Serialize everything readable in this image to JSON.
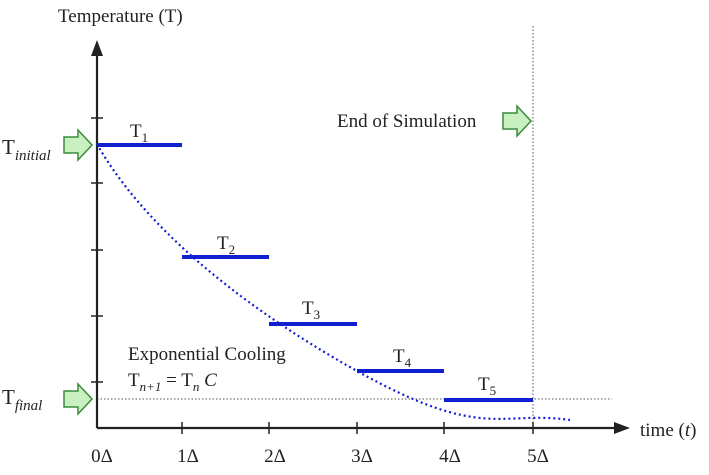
{
  "y_axis_label": "Temperature (T)",
  "x_axis_label_text": "time (",
  "x_axis_label_var": "t",
  "x_axis_label_close": ")",
  "t_initial": {
    "base": "T",
    "sub": "initial"
  },
  "t_final": {
    "base": "T",
    "sub": "final"
  },
  "end_label": "End of Simulation",
  "formula": {
    "title": "Exponential Cooling",
    "lhs_base": "T",
    "lhs_sub": "n+1",
    "equals": " = ",
    "rhs_base": "T",
    "rhs_sub": "n",
    "rhs_const": "C"
  },
  "x_ticks": [
    "0Δ",
    "1Δ",
    "2Δ",
    "3Δ",
    "4Δ",
    "5Δ"
  ],
  "steps": [
    {
      "base": "T",
      "sub": "1"
    },
    {
      "base": "T",
      "sub": "2"
    },
    {
      "base": "T",
      "sub": "3"
    },
    {
      "base": "T",
      "sub": "4"
    },
    {
      "base": "T",
      "sub": "5"
    }
  ],
  "colors": {
    "axis": "#222222",
    "step_bar": "#1020d0",
    "curve": "#1020d0",
    "arrow_fill": "#c8f0c0",
    "arrow_stroke": "#3a8a3a",
    "guide": "#555555"
  }
}
